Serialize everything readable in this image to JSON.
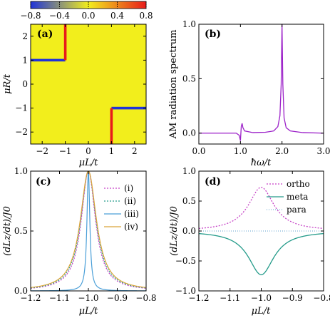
{
  "colorbar": {
    "ticks": [
      "−0.8",
      "−0.4",
      "0.0",
      "0.4",
      "0.8"
    ],
    "range": [
      -0.8,
      0.8
    ],
    "colors": {
      "negative": "#1f33d9",
      "neutral": "#f2ee1c",
      "positive": "#e81b1b"
    }
  },
  "chart_data": [
    {
      "panel": "(a)",
      "type": "heatmap",
      "xlabel": "μL/t",
      "ylabel": "μR/t",
      "xlim": [
        -2.5,
        2.5
      ],
      "ylim": [
        -2.5,
        2.5
      ],
      "xticks": [
        "−2",
        "−1",
        "0",
        "1",
        "2"
      ],
      "yticks": [
        "−2",
        "−1",
        "0",
        "1",
        "2"
      ],
      "background_value": 0.0,
      "features": [
        {
          "orientation": "horizontal",
          "at": 1.0,
          "from": -2.5,
          "to": -1.0,
          "value": -0.8
        },
        {
          "orientation": "vertical",
          "at": -1.0,
          "from": 1.0,
          "to": 2.5,
          "value": 0.8
        },
        {
          "orientation": "horizontal",
          "at": -1.0,
          "from": 1.0,
          "to": 2.5,
          "value": -0.8
        },
        {
          "orientation": "vertical",
          "at": 1.0,
          "from": -2.5,
          "to": -1.0,
          "value": 0.8
        }
      ]
    },
    {
      "panel": "(b)",
      "type": "line",
      "xlabel": "ħω/t",
      "ylabel": "AM radiation spectrum",
      "xlim": [
        0.0,
        3.0
      ],
      "ylim": [
        -0.1,
        1.0
      ],
      "xticks": [
        "0.0",
        "1.0",
        "2.0",
        "3.0"
      ],
      "yticks": [
        "0.0",
        "0.5",
        "1.0"
      ],
      "series": [
        {
          "color": "#9b1fc8",
          "x": [
            0.0,
            0.9,
            0.97,
            0.99,
            1.0,
            1.02,
            1.04,
            1.06,
            1.1,
            1.3,
            1.6,
            1.8,
            1.9,
            1.95,
            1.98,
            2.0,
            2.02,
            2.05,
            2.1,
            2.2,
            2.5,
            3.0
          ],
          "y": [
            0.0,
            0.0,
            -0.02,
            -0.05,
            -0.07,
            0.06,
            0.09,
            0.05,
            0.02,
            0.005,
            0.008,
            0.02,
            0.06,
            0.16,
            0.45,
            1.0,
            0.45,
            0.14,
            0.05,
            0.02,
            0.005,
            0.0
          ]
        }
      ]
    },
    {
      "panel": "(c)",
      "type": "line",
      "xlabel": "μL/t",
      "ylabel": "(dLz/dt)/J0",
      "xlim": [
        -1.2,
        -0.8
      ],
      "ylim": [
        0.0,
        1.0
      ],
      "xticks": [
        "−1.2",
        "−1.1",
        "−1.0",
        "−0.9",
        "−0.8"
      ],
      "yticks": [
        "0.0",
        "0.5",
        "1.0"
      ],
      "legend": "top-right",
      "series": [
        {
          "name": "(i)",
          "color": "#c640c6",
          "dash": "2,2",
          "gamma": 0.03
        },
        {
          "name": "(ii)",
          "color": "#249b8a",
          "dash": "2,2",
          "gamma": 0.032
        },
        {
          "name": "(iii)",
          "color": "#4a9fd8",
          "dash": "",
          "gamma": 0.006
        },
        {
          "name": "(iv)",
          "color": "#dba53a",
          "dash": "",
          "gamma": 0.034
        }
      ]
    },
    {
      "panel": "(d)",
      "type": "line",
      "xlabel": "μL/t",
      "ylabel": "(dLz/dt)/J0",
      "xlim": [
        -1.2,
        -0.8
      ],
      "ylim": [
        -1.0,
        1.0
      ],
      "xticks": [
        "−1.2",
        "−1.1",
        "−1.0",
        "−0.9",
        "−0.8"
      ],
      "yticks": [
        "−1.0",
        "−0.5",
        "0.0",
        "0.5",
        "1.0"
      ],
      "legend": "top-right",
      "series": [
        {
          "name": "ortho",
          "color": "#c640c6",
          "dash": "2,2",
          "amplitude": 0.73,
          "gamma": 0.05
        },
        {
          "name": "meta",
          "color": "#249b8a",
          "dash": "",
          "amplitude": -0.73,
          "gamma": 0.05
        },
        {
          "name": "para",
          "color": "#7fb3d8",
          "dash": "1,2",
          "amplitude": 0.0,
          "gamma": 0.05
        }
      ]
    }
  ]
}
